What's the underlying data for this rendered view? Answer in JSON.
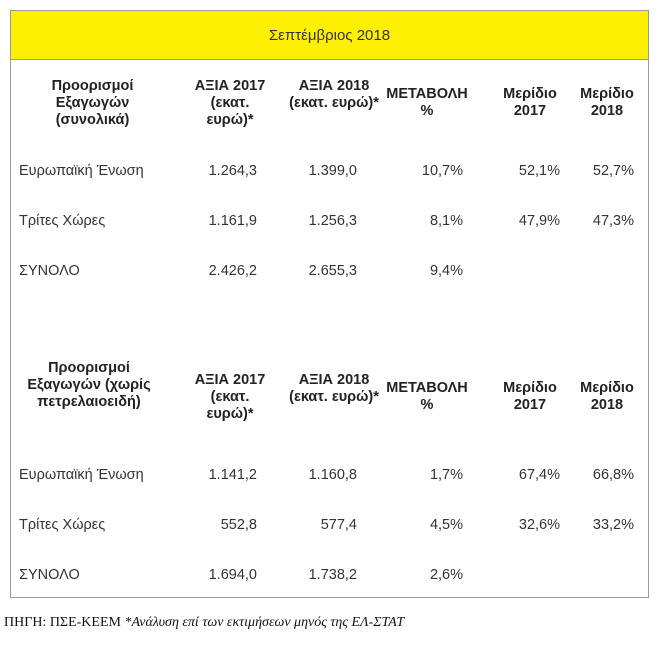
{
  "title": "Σεπτέμβριος 2018",
  "tables": [
    {
      "headers": {
        "destinations": "Προορισμοί Εξαγωγών (συνολικά)",
        "value2017": "ΑΞΙΑ 2017 (εκατ. ευρώ)*",
        "value2018": "ΑΞΙΑ 2018 (εκατ. ευρώ)*",
        "change": "ΜΕΤΑΒΟΛΗ %",
        "share2017": "Μερίδιο 2017",
        "share2018": "Μερίδιο 2018"
      },
      "rows": [
        {
          "label": "Ευρωπαϊκή Ένωση",
          "v2017": "1.264,3",
          "v2018": "1.399,0",
          "change": "10,7%",
          "s2017": "52,1%",
          "s2018": "52,7%"
        },
        {
          "label": "Τρίτες Χώρες",
          "v2017": "1.161,9",
          "v2018": "1.256,3",
          "change": "8,1%",
          "s2017": "47,9%",
          "s2018": "47,3%"
        },
        {
          "label": "ΣΥΝΟΛΟ",
          "v2017": "2.426,2",
          "v2018": "2.655,3",
          "change": "9,4%",
          "s2017": "",
          "s2018": ""
        }
      ]
    },
    {
      "headers": {
        "destinations": "Προορισμοί Εξαγωγών (χωρίς πετρελαιοειδή)",
        "value2017": "ΑΞΙΑ 2017 (εκατ. ευρώ)*",
        "value2018": "ΑΞΙΑ 2018 (εκατ. ευρώ)*",
        "change": "ΜΕΤΑΒΟΛΗ %",
        "share2017": "Μερίδιο 2017",
        "share2018": "Μερίδιο 2018"
      },
      "rows": [
        {
          "label": "Ευρωπαϊκή Ένωση",
          "v2017": "1.141,2",
          "v2018": "1.160,8",
          "change": "1,7%",
          "s2017": "67,4%",
          "s2018": "66,8%"
        },
        {
          "label": "Τρίτες Χώρες",
          "v2017": "552,8",
          "v2018": "577,4",
          "change": "4,5%",
          "s2017": "32,6%",
          "s2018": "33,2%"
        },
        {
          "label": "ΣΥΝΟΛΟ",
          "v2017": "1.694,0",
          "v2018": "1.738,2",
          "change": "2,6%",
          "s2017": "",
          "s2018": ""
        }
      ]
    }
  ],
  "footer": {
    "source": "ΠΗΓΗ: ΠΣΕ-ΚΕΕΜ ",
    "note": "*Ανάλυση επί των εκτιμήσεων μηνός της ΕΛ-ΣΤΑΤ"
  }
}
